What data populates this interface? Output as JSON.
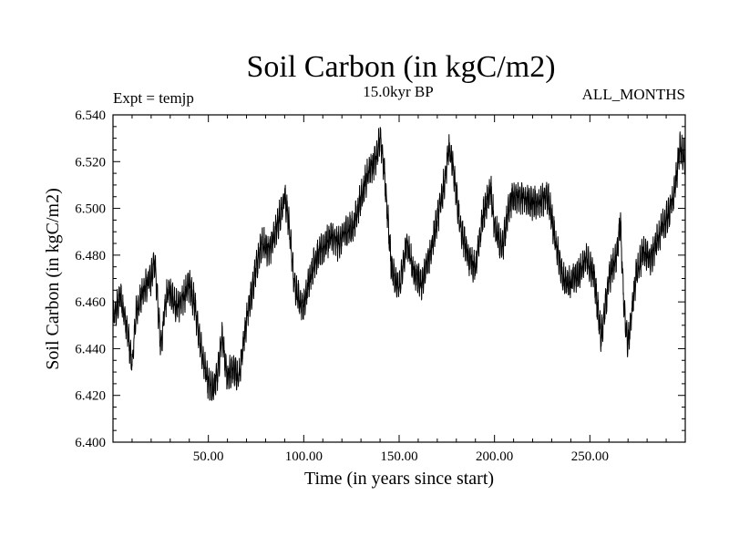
{
  "chart_data": {
    "type": "line",
    "title": "Soil Carbon (in kgC/m2)",
    "experiment_label": "Expt = temjp",
    "subtitle": "15.0kyr BP",
    "season_label": "ALL_MONTHS",
    "xlabel": "Time (in years since start)",
    "ylabel": "Soil Carbon (in kgC/m2)",
    "xlim": [
      0,
      300
    ],
    "ylim": [
      6.4,
      6.54
    ],
    "x_tick_labels": [
      "50.00",
      "100.00",
      "150.00",
      "200.00",
      "250.00"
    ],
    "x_tick_values": [
      50,
      100,
      150,
      200,
      250
    ],
    "y_tick_labels": [
      "6.400",
      "6.420",
      "6.440",
      "6.460",
      "6.480",
      "6.500",
      "6.520",
      "6.540"
    ],
    "y_tick_values": [
      6.4,
      6.42,
      6.44,
      6.46,
      6.48,
      6.5,
      6.52,
      6.54
    ],
    "series": [
      {
        "name": "Soil Carbon",
        "color": "#000000",
        "x": [
          0,
          4,
          8,
          10,
          12,
          16,
          20,
          22,
          25,
          28,
          30,
          33,
          36,
          40,
          43,
          46,
          50,
          52,
          55,
          57,
          60,
          63,
          66,
          70,
          74,
          78,
          82,
          86,
          90,
          92,
          95,
          98,
          100,
          103,
          106,
          110,
          114,
          118,
          122,
          126,
          130,
          134,
          138,
          140,
          142,
          146,
          150,
          154,
          158,
          162,
          166,
          170,
          174,
          176,
          178,
          182,
          186,
          190,
          194,
          198,
          200,
          204,
          208,
          212,
          216,
          220,
          224,
          228,
          232,
          236,
          240,
          244,
          248,
          252,
          256,
          260,
          264,
          266,
          268,
          270,
          274,
          278,
          282,
          286,
          290,
          294,
          297,
          300
        ],
        "y": [
          6.452,
          6.463,
          6.445,
          6.432,
          6.455,
          6.465,
          6.47,
          6.478,
          6.44,
          6.462,
          6.465,
          6.458,
          6.46,
          6.468,
          6.458,
          6.44,
          6.425,
          6.422,
          6.43,
          6.445,
          6.428,
          6.432,
          6.428,
          6.452,
          6.47,
          6.485,
          6.482,
          6.492,
          6.505,
          6.495,
          6.468,
          6.46,
          6.458,
          6.47,
          6.478,
          6.483,
          6.488,
          6.485,
          6.49,
          6.492,
          6.505,
          6.515,
          6.522,
          6.53,
          6.518,
          6.475,
          6.465,
          6.485,
          6.472,
          6.468,
          6.48,
          6.495,
          6.512,
          6.525,
          6.52,
          6.492,
          6.48,
          6.474,
          6.497,
          6.508,
          6.492,
          6.482,
          6.503,
          6.505,
          6.504,
          6.502,
          6.503,
          6.505,
          6.485,
          6.47,
          6.468,
          6.472,
          6.478,
          6.472,
          6.445,
          6.47,
          6.48,
          6.495,
          6.455,
          6.442,
          6.47,
          6.482,
          6.478,
          6.488,
          6.495,
          6.505,
          6.525,
          6.522
        ],
        "noise_amplitude": 0.008
      }
    ]
  }
}
